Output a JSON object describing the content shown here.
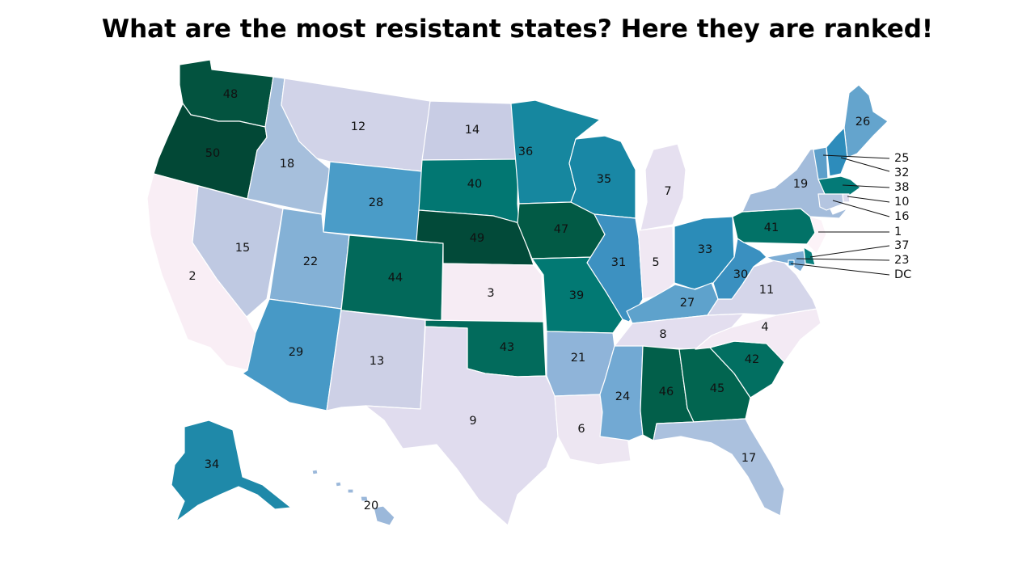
{
  "title": "What are the most resistant states? Here they are ranked!",
  "states": [
    {
      "name": "WA",
      "rank": "48",
      "color": "#03533f"
    },
    {
      "name": "OR",
      "rank": "50",
      "color": "#024836"
    },
    {
      "name": "CA",
      "rank": "2",
      "color": "#f9eef5"
    },
    {
      "name": "NV",
      "rank": "15",
      "color": "#bfc9e2"
    },
    {
      "name": "ID",
      "rank": "18",
      "color": "#a6bfdc"
    },
    {
      "name": "MT",
      "rank": "12",
      "color": "#d1d3e8"
    },
    {
      "name": "WY",
      "rank": "28",
      "color": "#4a9cc8"
    },
    {
      "name": "UT",
      "rank": "22",
      "color": "#84b1d6"
    },
    {
      "name": "AZ",
      "rank": "29",
      "color": "#4799c6"
    },
    {
      "name": "CO",
      "rank": "44",
      "color": "#02695a"
    },
    {
      "name": "NM",
      "rank": "13",
      "color": "#cdd0e6"
    },
    {
      "name": "ND",
      "rank": "14",
      "color": "#c8cce4"
    },
    {
      "name": "SD",
      "rank": "40",
      "color": "#027772"
    },
    {
      "name": "NE",
      "rank": "49",
      "color": "#024a39"
    },
    {
      "name": "KS",
      "rank": "3",
      "color": "#f6ecf4"
    },
    {
      "name": "OK",
      "rank": "43",
      "color": "#026b5c"
    },
    {
      "name": "TX",
      "rank": "9",
      "color": "#e0dcee"
    },
    {
      "name": "MN",
      "rank": "36",
      "color": "#16879f"
    },
    {
      "name": "IA",
      "rank": "47",
      "color": "#025a45"
    },
    {
      "name": "MO",
      "rank": "39",
      "color": "#027973"
    },
    {
      "name": "AR",
      "rank": "21",
      "color": "#8fb4d9"
    },
    {
      "name": "LA",
      "rank": "6",
      "color": "#ede6f2"
    },
    {
      "name": "WI",
      "rank": "35",
      "color": "#1987a5"
    },
    {
      "name": "IL",
      "rank": "31",
      "color": "#3d91c1"
    },
    {
      "name": "MI",
      "rank": "7",
      "color": "#e6e0f0"
    },
    {
      "name": "IN",
      "rank": "5",
      "color": "#f0e8f3"
    },
    {
      "name": "OH",
      "rank": "33",
      "color": "#2b8cb8"
    },
    {
      "name": "KY",
      "rank": "27",
      "color": "#5ea2cc"
    },
    {
      "name": "TN",
      "rank": "8",
      "color": "#e3deef"
    },
    {
      "name": "MS",
      "rank": "24",
      "color": "#72a9d3"
    },
    {
      "name": "AL",
      "rank": "46",
      "color": "#025f4a"
    },
    {
      "name": "GA",
      "rank": "45",
      "color": "#026550"
    },
    {
      "name": "FL",
      "rank": "17",
      "color": "#abc1de"
    },
    {
      "name": "SC",
      "rank": "42",
      "color": "#026f61"
    },
    {
      "name": "NC",
      "rank": "4",
      "color": "#f3eaf4"
    },
    {
      "name": "VA",
      "rank": "11",
      "color": "#d5d6ea"
    },
    {
      "name": "WV",
      "rank": "30",
      "color": "#3a90c0"
    },
    {
      "name": "PA",
      "rank": "41",
      "color": "#027267"
    },
    {
      "name": "NY",
      "rank": "19",
      "color": "#a3bcdb"
    },
    {
      "name": "ME",
      "rank": "26",
      "color": "#64a4cd"
    },
    {
      "name": "AK",
      "rank": "34",
      "color": "#1f89a9"
    },
    {
      "name": "HI",
      "rank": "20",
      "color": "#9bb8da"
    }
  ],
  "small_states": [
    {
      "name": "VT",
      "rank": "25",
      "color": "#5d9fca"
    },
    {
      "name": "NH",
      "rank": "32",
      "color": "#2d8cbb"
    },
    {
      "name": "MA",
      "rank": "38",
      "color": "#047a77"
    },
    {
      "name": "RI",
      "rank": "10",
      "color": "#dadaec"
    },
    {
      "name": "CT",
      "rank": "16",
      "color": "#b4c5e0"
    },
    {
      "name": "NJ",
      "rank": "1",
      "color": "#fcf3f8"
    },
    {
      "name": "DE",
      "rank": "37",
      "color": "#087f7c"
    },
    {
      "name": "MD",
      "rank": "23",
      "color": "#7cadd5"
    },
    {
      "name": "DC",
      "rank": "DC",
      "color": "#3f93c3"
    }
  ]
}
